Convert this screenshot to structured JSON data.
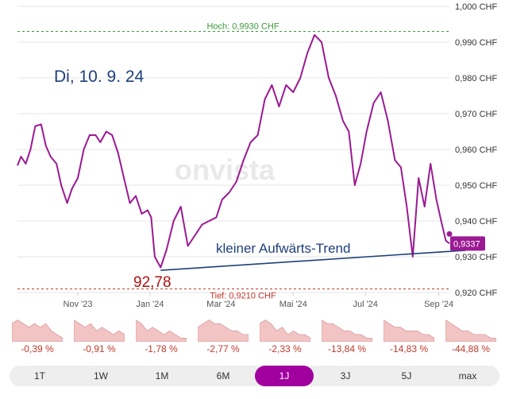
{
  "chart_data": {
    "type": "line",
    "currency": "CHF",
    "y_ticks": [
      "1,000 CHF",
      "0,990 CHF",
      "0,980 CHF",
      "0,970 CHF",
      "0,960 CHF",
      "0,950 CHF",
      "0,940 CHF",
      "0,930 CHF",
      "0,920 CHF"
    ],
    "y_tick_values": [
      1.0,
      0.99,
      0.98,
      0.97,
      0.96,
      0.95,
      0.94,
      0.93,
      0.92
    ],
    "ylim": [
      0.92,
      1.0
    ],
    "x_ticks": [
      "Nov '23",
      "Jan '24",
      "Mar '24",
      "Mai '24",
      "Jul '24",
      "Sep '24"
    ],
    "xlim": [
      "2023-09-11",
      "2024-09-10"
    ],
    "x_tick_dates": [
      "2023-11-01",
      "2024-01-01",
      "2024-03-01",
      "2024-05-01",
      "2024-07-01",
      "2024-09-01"
    ],
    "series": [
      {
        "color": "#9b1a94",
        "x": [
          "2023-09-11",
          "2023-09-14",
          "2023-09-18",
          "2023-09-22",
          "2023-09-26",
          "2023-10-01",
          "2023-10-05",
          "2023-10-09",
          "2023-10-14",
          "2023-10-18",
          "2023-10-23",
          "2023-10-27",
          "2023-11-01",
          "2023-11-06",
          "2023-11-11",
          "2023-11-16",
          "2023-11-20",
          "2023-11-25",
          "2023-11-30",
          "2023-12-05",
          "2023-12-10",
          "2023-12-15",
          "2023-12-20",
          "2023-12-25",
          "2023-12-30",
          "2024-01-02",
          "2024-01-05",
          "2024-01-10",
          "2024-01-15",
          "2024-01-21",
          "2024-01-27",
          "2024-02-02",
          "2024-02-08",
          "2024-02-14",
          "2024-02-20",
          "2024-02-26",
          "2024-03-02",
          "2024-03-08",
          "2024-03-14",
          "2024-03-20",
          "2024-03-26",
          "2024-04-01",
          "2024-04-07",
          "2024-04-13",
          "2024-04-19",
          "2024-04-25",
          "2024-05-01",
          "2024-05-07",
          "2024-05-13",
          "2024-05-19",
          "2024-05-25",
          "2024-05-31",
          "2024-06-06",
          "2024-06-12",
          "2024-06-17",
          "2024-06-22",
          "2024-06-27",
          "2024-07-02",
          "2024-07-08",
          "2024-07-14",
          "2024-07-20",
          "2024-07-26",
          "2024-07-31",
          "2024-08-05",
          "2024-08-10",
          "2024-08-15",
          "2024-08-20",
          "2024-08-25",
          "2024-08-30",
          "2024-09-03",
          "2024-09-07",
          "2024-09-10"
        ],
        "values": [
          0.9555,
          0.958,
          0.956,
          0.96,
          0.9665,
          0.967,
          0.961,
          0.958,
          0.956,
          0.95,
          0.945,
          0.949,
          0.952,
          0.96,
          0.964,
          0.964,
          0.962,
          0.965,
          0.964,
          0.959,
          0.952,
          0.945,
          0.947,
          0.942,
          0.943,
          0.941,
          0.93,
          0.927,
          0.932,
          0.94,
          0.944,
          0.933,
          0.936,
          0.939,
          0.94,
          0.941,
          0.946,
          0.948,
          0.951,
          0.957,
          0.962,
          0.964,
          0.974,
          0.978,
          0.972,
          0.978,
          0.976,
          0.98,
          0.987,
          0.992,
          0.99,
          0.98,
          0.975,
          0.968,
          0.965,
          0.95,
          0.956,
          0.965,
          0.973,
          0.976,
          0.968,
          0.957,
          0.955,
          0.944,
          0.93,
          0.952,
          0.944,
          0.956,
          0.946,
          0.94,
          0.9345,
          0.9337
        ]
      }
    ],
    "reference_lines": [
      {
        "label": "Hoch: 0,9930 CHF",
        "value": 0.993,
        "color": "#3a9a3a"
      },
      {
        "label": "Tief: 0,9210 CHF",
        "value": 0.921,
        "color": "#c0392b"
      }
    ],
    "last_value_label": "0,9337",
    "last_value": 0.9337,
    "annotations": {
      "date": "Di, 10. 9. 24",
      "trend_label": "kleiner Aufwärts-Trend",
      "low_label": "92,78"
    },
    "trendline": {
      "from": {
        "x": "2024-01-10",
        "y": 0.9262
      },
      "to": {
        "x": "2024-09-24",
        "y": 0.9318
      },
      "color": "#1f3f7a"
    },
    "watermark": "onvista"
  },
  "performance": [
    {
      "label": "-0,39 %",
      "values": [
        5,
        6,
        5,
        4,
        5,
        4,
        5,
        3,
        2,
        1
      ]
    },
    {
      "label": "-0,91 %",
      "values": [
        6,
        5,
        4,
        5,
        3,
        4,
        3,
        2,
        3,
        2
      ]
    },
    {
      "label": "-1,78 %",
      "values": [
        6,
        5,
        3,
        4,
        3,
        2,
        3,
        2,
        1,
        1
      ]
    },
    {
      "label": "-2,77 %",
      "values": [
        4,
        5,
        6,
        5,
        5,
        4,
        3,
        3,
        2,
        2
      ]
    },
    {
      "label": "-2,33 %",
      "values": [
        5,
        6,
        5,
        3,
        4,
        2,
        3,
        2,
        2,
        1
      ]
    },
    {
      "label": "-13,84 %",
      "values": [
        6,
        5,
        5,
        4,
        3,
        3,
        2,
        2,
        1,
        1
      ]
    },
    {
      "label": "-14,83 %",
      "values": [
        6,
        5,
        4,
        4,
        3,
        3,
        3,
        2,
        2,
        1
      ]
    },
    {
      "label": "-44,88 %",
      "values": [
        6,
        5,
        4,
        3,
        3,
        2,
        2,
        2,
        1,
        1
      ]
    }
  ],
  "ranges": {
    "items": [
      "1T",
      "1W",
      "1M",
      "6M",
      "1J",
      "3J",
      "5J",
      "max"
    ],
    "active": "1J"
  }
}
